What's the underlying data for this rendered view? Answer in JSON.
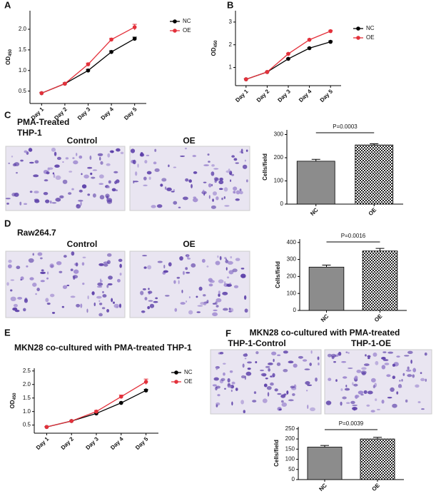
{
  "chart_data": [
    {
      "type": "line",
      "panel": "A",
      "ylabel": "OD",
      "ylabel_sub": "450",
      "categories": [
        "Day 1",
        "Day 2",
        "Day 3",
        "Day 4",
        "Day 5"
      ],
      "series": [
        {
          "name": "NC",
          "color": "#000000",
          "values": [
            0.45,
            0.68,
            1.0,
            1.45,
            1.77
          ],
          "errors": [
            0.02,
            0.02,
            0.03,
            0.03,
            0.04
          ]
        },
        {
          "name": "OE",
          "color": "#e3313b",
          "values": [
            0.45,
            0.68,
            1.15,
            1.75,
            2.05
          ],
          "errors": [
            0.02,
            0.02,
            0.03,
            0.03,
            0.07
          ]
        }
      ],
      "ylim": [
        0.2,
        2.45
      ],
      "yticks": [
        0.5,
        {
          "value": 1,
          "label": "1.0"
        },
        1.5,
        {
          "value": 2,
          "label": "2.0"
        }
      ]
    },
    {
      "type": "line",
      "panel": "B",
      "ylabel": "OD",
      "ylabel_sub": "450",
      "categories": [
        "Day 1",
        "Day 2",
        "Day 3",
        "Day 4",
        "Day 5"
      ],
      "series": [
        {
          "name": "NC",
          "color": "#000000",
          "values": [
            0.48,
            0.8,
            1.38,
            1.85,
            2.13
          ],
          "errors": [
            0.02,
            0.02,
            0.03,
            0.03,
            0.04
          ]
        },
        {
          "name": "OE",
          "color": "#e3313b",
          "values": [
            0.48,
            0.8,
            1.6,
            2.22,
            2.6
          ],
          "errors": [
            0.02,
            0.02,
            0.03,
            0.03,
            0.04
          ]
        }
      ],
      "ylim": [
        0.2,
        3.5
      ],
      "yticks": [
        1,
        2,
        3
      ]
    },
    {
      "type": "bar",
      "panel": "C",
      "caption_lines": [
        "PMA-Treated",
        "THP-1"
      ],
      "image_labels": [
        "Control",
        "OE"
      ],
      "ylabel": "Cells/field",
      "categories": [
        "NC",
        "OE"
      ],
      "values": [
        185,
        255
      ],
      "errors": [
        8,
        5
      ],
      "fills": [
        "#8c8c8c",
        "checkered"
      ],
      "annotation": "P=0.0003",
      "ylim": [
        0,
        320
      ],
      "yticks": [
        0,
        100,
        200,
        300
      ]
    },
    {
      "type": "bar",
      "panel": "D",
      "caption_lines": [
        "Raw264.7"
      ],
      "image_labels": [
        "Control",
        "OE"
      ],
      "ylabel": "Cells/field",
      "categories": [
        "NC",
        "OE"
      ],
      "values": [
        255,
        350
      ],
      "errors": [
        12,
        15
      ],
      "fills": [
        "#8c8c8c",
        "checkered"
      ],
      "annotation": "P=0.0016",
      "ylim": [
        0,
        420
      ],
      "yticks": [
        0,
        100,
        200,
        300,
        400
      ]
    },
    {
      "type": "line",
      "panel": "E",
      "title": "MKN28 co-cultured with PMA-treated THP-1",
      "ylabel": "OD",
      "ylabel_sub": "450",
      "categories": [
        "Day 1",
        "Day 2",
        "Day 3",
        "Day 4",
        "Day 5"
      ],
      "series": [
        {
          "name": "NC",
          "color": "#000000",
          "values": [
            0.43,
            0.65,
            0.93,
            1.32,
            1.78
          ],
          "errors": [
            0.02,
            0.02,
            0.03,
            0.03,
            0.04
          ]
        },
        {
          "name": "OE",
          "color": "#e3313b",
          "values": [
            0.43,
            0.65,
            1.0,
            1.55,
            2.1
          ],
          "errors": [
            0.02,
            0.02,
            0.04,
            0.06,
            0.1
          ]
        }
      ],
      "ylim": [
        0.2,
        2.6
      ],
      "yticks": [
        0.5,
        {
          "value": 1,
          "label": "1.0"
        },
        1.5,
        {
          "value": 2,
          "label": "2.0"
        },
        2.5
      ]
    },
    {
      "type": "bar",
      "panel": "F",
      "caption_lines": [
        "MKN28 co-cultured with PMA-treated"
      ],
      "image_labels": [
        "THP-1-Control",
        "THP-1-OE"
      ],
      "ylabel": "Cells/field",
      "categories": [
        "NC",
        "OE"
      ],
      "values": [
        160,
        200
      ],
      "errors": [
        8,
        8
      ],
      "fills": [
        "#8c8c8c",
        "checkered"
      ],
      "annotation": "P=0.0039",
      "ylim": [
        0,
        260
      ],
      "yticks": [
        0,
        50,
        100,
        150,
        200,
        250
      ]
    }
  ]
}
